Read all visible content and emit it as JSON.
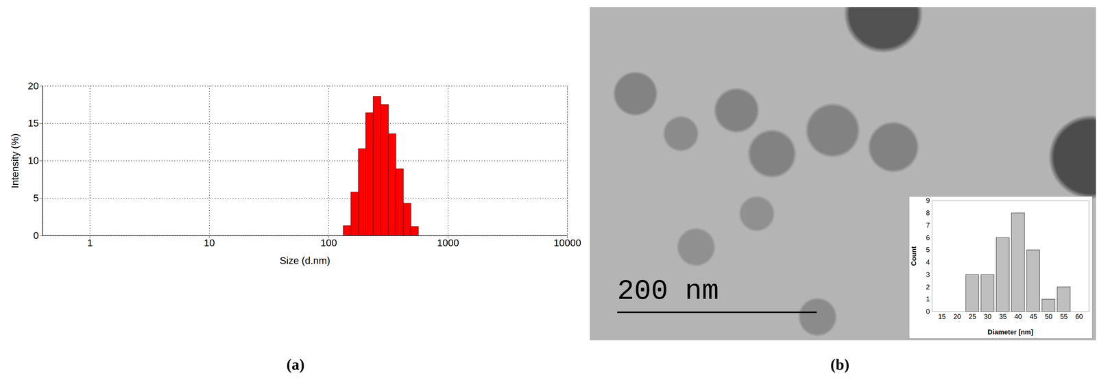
{
  "chart_data": [
    {
      "type": "histogram",
      "panel_label": "(a)",
      "x_label": "Size (d.nm)",
      "y_label": "Intensity (%)",
      "bins": [
        133,
        154,
        178,
        205,
        237,
        274,
        317,
        366,
        423,
        489,
        565
      ],
      "values": [
        1.3,
        5.8,
        11.6,
        16.4,
        18.6,
        17.5,
        13.6,
        8.9,
        4.3,
        1.2
      ],
      "color": "#ff0000",
      "log": "x",
      "grid": true,
      "xlim": [
        0.4,
        10000
      ],
      "xticks": [
        1,
        10,
        100,
        1000,
        10000
      ],
      "ylim": [
        0,
        20
      ],
      "yticks": [
        0,
        5,
        10,
        15,
        20
      ]
    },
    {
      "type": "bar",
      "panel_label": "(b)",
      "annotations": [
        "200 nm"
      ],
      "x_label": "Diameter [nm]",
      "y_label": "Count",
      "categories": [
        15,
        20,
        25,
        30,
        35,
        40,
        45,
        50,
        55,
        60
      ],
      "values": [
        0,
        0,
        3,
        3,
        6,
        8,
        5,
        1,
        2,
        0
      ],
      "color": "#bfbfbf",
      "grid": false,
      "ylim": [
        0,
        9
      ],
      "yticks": [
        0,
        1,
        2,
        3,
        4,
        5,
        6,
        7,
        8,
        9
      ]
    }
  ]
}
